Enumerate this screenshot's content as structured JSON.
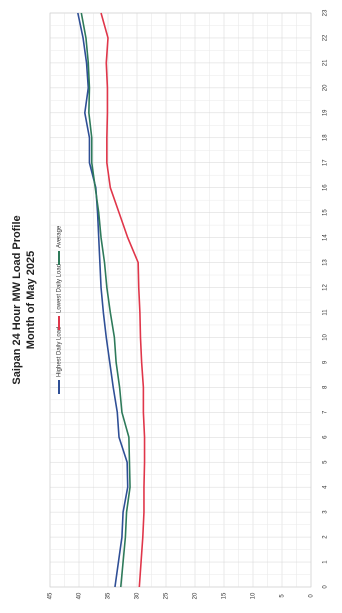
{
  "chart_data": {
    "type": "line",
    "title": "Saipan 24 Hour MW Load Profile",
    "subtitle": "Month of May 2025",
    "xlabel": "",
    "ylabel": "",
    "x": [
      0,
      1,
      2,
      3,
      4,
      5,
      6,
      7,
      8,
      9,
      10,
      11,
      12,
      13,
      14,
      15,
      16,
      17,
      18,
      19,
      20,
      21,
      22,
      23
    ],
    "xlim": [
      0,
      23
    ],
    "ylim": [
      0,
      45
    ],
    "y_ticks": [
      0,
      5,
      10,
      15,
      20,
      25,
      30,
      35,
      40,
      45
    ],
    "grid": true,
    "legend": "bottom",
    "orientation": "rotated-90-ccw",
    "series": [
      {
        "name": "Highest Daily Load",
        "color": "#2f4f96",
        "values": [
          33.8,
          33.2,
          32.6,
          32.4,
          31.6,
          31.7,
          33.1,
          33.4,
          34.1,
          34.7,
          35.3,
          35.8,
          36.2,
          36.4,
          36.6,
          36.8,
          37.1,
          38.2,
          38.2,
          39.0,
          38.4,
          38.7,
          39.3,
          40.2
        ]
      },
      {
        "name": "Lowest Daily Load",
        "color": "#e0364a",
        "values": [
          29.6,
          29.3,
          29.0,
          28.8,
          28.8,
          28.7,
          28.7,
          28.9,
          28.9,
          29.2,
          29.4,
          29.5,
          29.7,
          29.8,
          31.6,
          33.1,
          34.6,
          35.2,
          35.2,
          35.1,
          35.1,
          35.3,
          35.0,
          36.2
        ]
      },
      {
        "name": "Average",
        "color": "#2e7a5a",
        "values": [
          32.8,
          32.4,
          32.0,
          31.8,
          31.2,
          31.3,
          31.4,
          32.6,
          33.0,
          33.6,
          33.9,
          34.6,
          35.2,
          35.6,
          36.2,
          36.6,
          37.2,
          37.8,
          37.8,
          38.3,
          38.2,
          38.4,
          38.8,
          39.6
        ]
      }
    ]
  }
}
